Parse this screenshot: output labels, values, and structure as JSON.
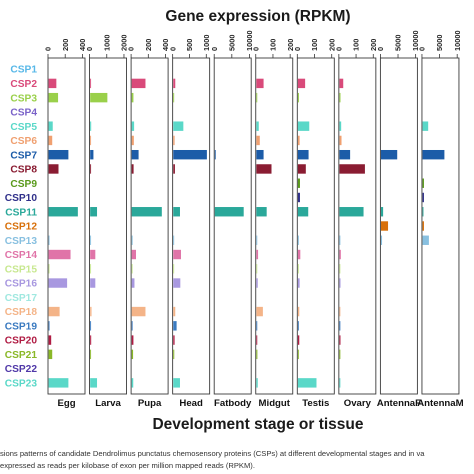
{
  "chart_data": {
    "type": "bar",
    "orientation": "horizontal",
    "title": "Gene expression (RPKM)",
    "xlabel": "Development stage or tissue",
    "categories": [
      "CSP1",
      "CSP2",
      "CSP3",
      "CSP4",
      "CSP5",
      "CSP6",
      "CSP7",
      "CSP8",
      "CSP9",
      "CSP10",
      "CSP11",
      "CSP12",
      "CSP13",
      "CSP14",
      "CSP15",
      "CSP16",
      "CSP17",
      "CSP18",
      "CSP19",
      "CSP20",
      "CSP21",
      "CSP22",
      "CSP23"
    ],
    "category_colors": [
      "#58b8e8",
      "#d94a7a",
      "#9ad04a",
      "#7a62c8",
      "#5ad8c8",
      "#f0a070",
      "#1c5ca8",
      "#8a1c32",
      "#5a9a1c",
      "#30308a",
      "#2aa89a",
      "#d8700a",
      "#88c0e0",
      "#e074a8",
      "#c8e890",
      "#a898e0",
      "#a0e8e0",
      "#f4b488",
      "#3a7ac0",
      "#b01c44",
      "#8ab828",
      "#5038a8",
      "#5ad8c8"
    ],
    "panels": [
      {
        "name": "Egg",
        "ticks": [
          0,
          200,
          400
        ],
        "xlim": [
          0,
          430
        ],
        "values": [
          0,
          90,
          110,
          0,
          48,
          42,
          230,
          115,
          0,
          0,
          340,
          0,
          8,
          255,
          8,
          215,
          0,
          128,
          10,
          30,
          42,
          0,
          230
        ]
      },
      {
        "name": "Larva",
        "ticks": [
          0,
          1000,
          2000
        ],
        "xlim": [
          0,
          2150
        ],
        "values": [
          0,
          20,
          1000,
          0,
          60,
          50,
          190,
          40,
          0,
          0,
          400,
          0,
          12,
          300,
          20,
          300,
          0,
          80,
          15,
          60,
          40,
          0,
          400
        ]
      },
      {
        "name": "Pupa",
        "ticks": [
          0,
          200,
          400
        ],
        "xlim": [
          0,
          430
        ],
        "values": [
          0,
          160,
          20,
          0,
          28,
          25,
          80,
          22,
          0,
          0,
          350,
          0,
          8,
          50,
          8,
          32,
          0,
          160,
          8,
          20,
          16,
          0,
          18
        ]
      },
      {
        "name": "Head",
        "ticks": [
          0,
          500,
          1000
        ],
        "xlim": [
          0,
          1100
        ],
        "values": [
          0,
          60,
          20,
          0,
          300,
          40,
          1000,
          50,
          0,
          0,
          200,
          0,
          20,
          230,
          20,
          210,
          0,
          60,
          100,
          40,
          30,
          0,
          200
        ]
      },
      {
        "name": "Fatbody",
        "ticks": [
          0,
          5000,
          10000
        ],
        "xlim": [
          0,
          10500
        ],
        "values": [
          0,
          0,
          0,
          0,
          0,
          0,
          100,
          0,
          0,
          0,
          8200,
          0,
          0,
          0,
          0,
          0,
          0,
          0,
          0,
          0,
          0,
          0,
          0
        ]
      },
      {
        "name": "Midgut",
        "ticks": [
          0,
          100,
          200
        ],
        "xlim": [
          0,
          215
        ],
        "values": [
          0,
          42,
          5,
          0,
          14,
          20,
          42,
          88,
          0,
          0,
          60,
          0,
          4,
          10,
          4,
          8,
          0,
          38,
          4,
          4,
          6,
          0,
          8
        ]
      },
      {
        "name": "Testis",
        "ticks": [
          0,
          100,
          200
        ],
        "xlim": [
          0,
          215
        ],
        "values": [
          0,
          42,
          6,
          0,
          66,
          10,
          62,
          46,
          12,
          12,
          60,
          0,
          4,
          14,
          4,
          10,
          0,
          8,
          4,
          8,
          4,
          0,
          108
        ]
      },
      {
        "name": "Ovary",
        "ticks": [
          0,
          100,
          200
        ],
        "xlim": [
          0,
          215
        ],
        "values": [
          0,
          22,
          6,
          0,
          10,
          12,
          62,
          148,
          0,
          0,
          140,
          0,
          4,
          8,
          4,
          6,
          0,
          4,
          4,
          6,
          4,
          0,
          4
        ]
      },
      {
        "name": "AntennaF",
        "ticks": [
          0,
          5000,
          10000
        ],
        "xlim": [
          0,
          10500
        ],
        "values": [
          0,
          0,
          0,
          0,
          0,
          0,
          4600,
          0,
          0,
          0,
          600,
          2000,
          300,
          0,
          0,
          0,
          0,
          0,
          0,
          0,
          0,
          0,
          0
        ]
      },
      {
        "name": "AntennaM",
        "ticks": [
          0,
          5000,
          10000
        ],
        "xlim": [
          0,
          10500
        ],
        "values": [
          0,
          0,
          0,
          0,
          1600,
          0,
          6200,
          0,
          400,
          400,
          200,
          400,
          1800,
          0,
          0,
          0,
          0,
          0,
          0,
          0,
          0,
          0,
          0
        ]
      }
    ]
  },
  "caption": {
    "line1": "sions patterns of candidate Dendrolimus punctatus chemosensory proteins (CSPs) at different developmental stages and in va",
    "line2": "expressed as reads per kilobase of exon per million mapped reads (RPKM)."
  }
}
